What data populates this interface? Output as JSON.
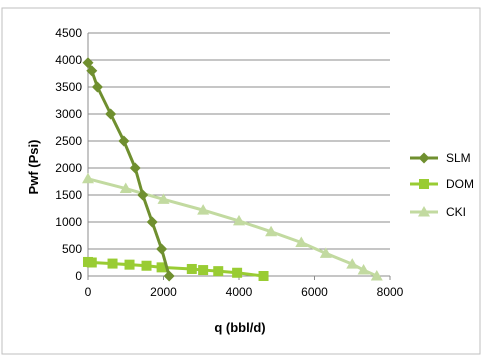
{
  "chart_data": {
    "type": "line",
    "title": "",
    "xlabel": "q (bbl/d)",
    "ylabel": "Pwf (Psi)",
    "xlim": [
      0,
      8000
    ],
    "ylim": [
      0,
      4500
    ],
    "xticks": [
      0,
      2000,
      4000,
      6000,
      8000
    ],
    "yticks": [
      0,
      500,
      1000,
      1500,
      2000,
      2500,
      3000,
      3500,
      4000,
      4500
    ],
    "grid": "horizontal",
    "legend_position": "right",
    "series": [
      {
        "name": "SLM",
        "color": "#6f8f2f",
        "marker": "diamond",
        "points": [
          [
            0,
            3950
          ],
          [
            100,
            3800
          ],
          [
            250,
            3500
          ],
          [
            600,
            3000
          ],
          [
            950,
            2500
          ],
          [
            1250,
            2000
          ],
          [
            1450,
            1500
          ],
          [
            1700,
            1000
          ],
          [
            1950,
            500
          ],
          [
            2150,
            0
          ]
        ]
      },
      {
        "name": "DOM",
        "color": "#99cc33",
        "marker": "square",
        "points": [
          [
            0,
            260
          ],
          [
            100,
            250
          ],
          [
            650,
            230
          ],
          [
            1100,
            210
          ],
          [
            1550,
            190
          ],
          [
            1950,
            160
          ],
          [
            2750,
            130
          ],
          [
            3050,
            110
          ],
          [
            3450,
            90
          ],
          [
            3950,
            60
          ],
          [
            4650,
            0
          ]
        ]
      },
      {
        "name": "CKI",
        "color": "#c2daa0",
        "marker": "triangle",
        "points": [
          [
            0,
            1800
          ],
          [
            1000,
            1620
          ],
          [
            2000,
            1420
          ],
          [
            3050,
            1220
          ],
          [
            4000,
            1020
          ],
          [
            4850,
            820
          ],
          [
            5650,
            620
          ],
          [
            6300,
            420
          ],
          [
            7000,
            220
          ],
          [
            7300,
            110
          ],
          [
            7650,
            0
          ]
        ]
      }
    ]
  }
}
